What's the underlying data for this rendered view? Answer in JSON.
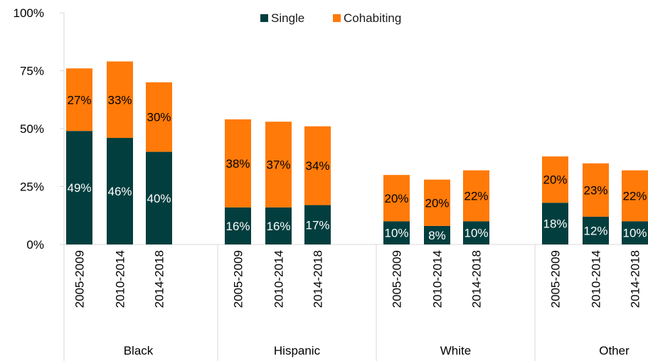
{
  "chart_data": {
    "type": "bar",
    "stacked": true,
    "title": "",
    "xlabel": "",
    "ylabel": "",
    "ylim": [
      0,
      100
    ],
    "yticks": [
      "0%",
      "25%",
      "50%",
      "75%",
      "100%"
    ],
    "yticks_values": [
      0,
      25,
      50,
      75,
      100
    ],
    "grid": false,
    "legend_position": "top",
    "groups": [
      {
        "name": "Black",
        "periods": [
          "2005-2009",
          "2010-2014",
          "2014-2018"
        ]
      },
      {
        "name": "Hispanic",
        "periods": [
          "2005-2009",
          "2010-2014",
          "2014-2018"
        ]
      },
      {
        "name": "White",
        "periods": [
          "2005-2009",
          "2010-2014",
          "2014-2018"
        ]
      },
      {
        "name": "Other",
        "periods": [
          "2005-2009",
          "2010-2014",
          "2014-2018"
        ]
      }
    ],
    "series": [
      {
        "name": "Single",
        "color": "#033e3e",
        "label_color": "#ffffff",
        "values": [
          49,
          46,
          40,
          16,
          16,
          17,
          10,
          8,
          10,
          18,
          12,
          10
        ],
        "labels": [
          "49%",
          "46%",
          "40%",
          "16%",
          "16%",
          "17%",
          "10%",
          "8%",
          "10%",
          "18%",
          "12%",
          "10%"
        ]
      },
      {
        "name": "Cohabiting",
        "color": "#ff7a08",
        "label_color": "#000000",
        "values": [
          27,
          33,
          30,
          38,
          37,
          34,
          20,
          20,
          22,
          20,
          23,
          22
        ],
        "labels": [
          "27%",
          "33%",
          "30%",
          "38%",
          "37%",
          "34%",
          "20%",
          "20%",
          "22%",
          "20%",
          "23%",
          "22%"
        ]
      }
    ]
  }
}
